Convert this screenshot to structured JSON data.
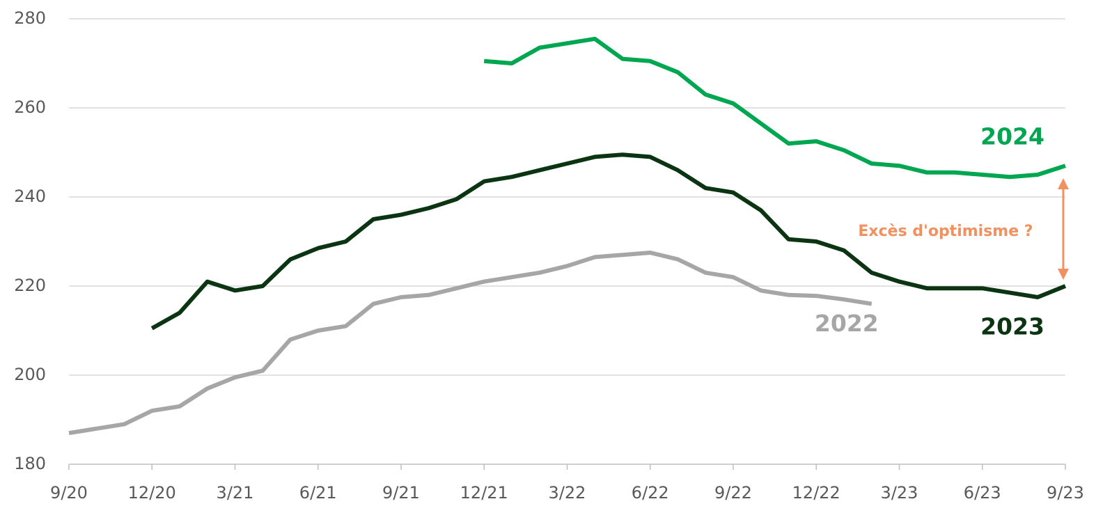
{
  "chart_data": {
    "type": "line",
    "categories": [
      "9/20",
      null,
      null,
      "12/20",
      null,
      null,
      "3/21",
      null,
      null,
      "6/21",
      null,
      null,
      "9/21",
      null,
      null,
      "12/21",
      null,
      null,
      "3/22",
      null,
      null,
      "6/22",
      null,
      null,
      "9/22",
      null,
      null,
      "12/22",
      null,
      null,
      "3/23",
      null,
      null,
      "6/23",
      null,
      null,
      "9/23"
    ],
    "series": [
      {
        "name": "2022",
        "color": "#a6a6a6",
        "values": [
          187,
          188,
          189,
          192,
          193,
          197,
          199.5,
          201,
          208,
          210,
          211,
          216,
          217.5,
          218,
          219.5,
          221,
          222,
          223,
          224.5,
          226.5,
          227,
          227.5,
          226,
          223,
          222,
          219,
          218,
          217.8,
          217,
          216,
          null,
          null,
          null,
          null,
          null,
          null,
          null
        ]
      },
      {
        "name": "2023",
        "color": "#0b3512",
        "values": [
          null,
          null,
          null,
          210.5,
          214,
          221,
          219,
          220,
          226,
          228.5,
          230,
          235,
          236,
          237.5,
          239.5,
          243.5,
          244.5,
          246,
          247.5,
          249,
          249.5,
          249,
          246,
          242,
          241,
          237,
          230.5,
          230,
          228,
          223,
          221,
          219.5,
          219.5,
          219.5,
          218.5,
          217.5,
          220
        ]
      },
      {
        "name": "2024",
        "color": "#00a650",
        "values": [
          null,
          null,
          null,
          null,
          null,
          null,
          null,
          null,
          null,
          null,
          null,
          null,
          null,
          null,
          null,
          270.5,
          270,
          273.5,
          274.5,
          275.5,
          271,
          270.5,
          268,
          263,
          261,
          256.5,
          252,
          252.5,
          250.5,
          247.5,
          247,
          245.5,
          245.5,
          245,
          244.5,
          245,
          247
        ]
      }
    ],
    "annotation": "Excès d'optimisme ?",
    "ylim": [
      180,
      280
    ],
    "yticks": [
      180,
      200,
      220,
      240,
      260,
      280
    ],
    "grid": true
  }
}
